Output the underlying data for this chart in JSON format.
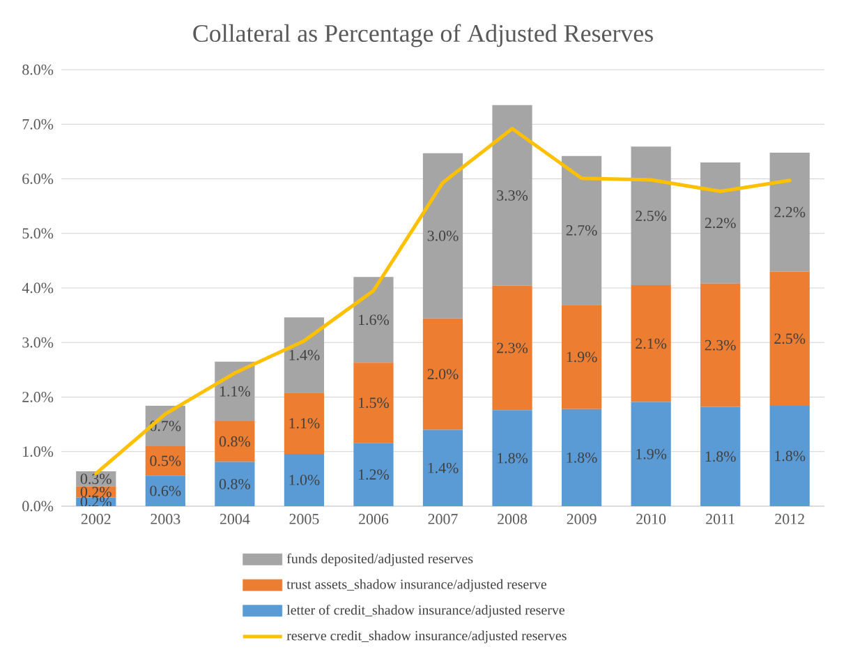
{
  "chart_data": {
    "type": "bar",
    "title": "Collateral as Percentage of Adjusted Reserves",
    "categories": [
      "2002",
      "2003",
      "2004",
      "2005",
      "2006",
      "2007",
      "2008",
      "2009",
      "2010",
      "2011",
      "2012"
    ],
    "series": [
      {
        "name": "letter of credit_shadow insurance/adjusted reserve",
        "color": "#5b9bd5",
        "values": [
          0.16,
          0.56,
          0.81,
          0.96,
          1.16,
          1.4,
          1.76,
          1.78,
          1.91,
          1.82,
          1.84
        ],
        "value_labels": [
          "0.2%",
          "0.6%",
          "0.8%",
          "1.0%",
          "1.2%",
          "1.4%",
          "1.8%",
          "1.8%",
          "1.9%",
          "1.8%",
          "1.8%"
        ]
      },
      {
        "name": "trust assets_shadow insurance/adjusted reserve",
        "color": "#ed7d31",
        "values": [
          0.2,
          0.54,
          0.75,
          1.12,
          1.47,
          2.04,
          2.28,
          1.91,
          2.14,
          2.26,
          2.46
        ],
        "value_labels": [
          "0.2%",
          "0.5%",
          "0.8%",
          "1.1%",
          "1.5%",
          "2.0%",
          "2.3%",
          "1.9%",
          "2.1%",
          "2.3%",
          "2.5%"
        ]
      },
      {
        "name": "funds deposited/adjusted reserves",
        "color": "#a5a5a5",
        "values": [
          0.28,
          0.74,
          1.09,
          1.38,
          1.57,
          3.03,
          3.31,
          2.73,
          2.54,
          2.22,
          2.18
        ],
        "value_labels": [
          "0.3%",
          "0.7%",
          "1.1%",
          "1.4%",
          "1.6%",
          "3.0%",
          "3.3%",
          "2.7%",
          "2.5%",
          "2.2%",
          "2.2%"
        ]
      },
      {
        "name": "reserve credit_shadow insurance/adjusted reserves",
        "type": "line",
        "color": "#ffc000",
        "values": [
          0.6,
          1.69,
          2.44,
          3.03,
          3.95,
          5.93,
          6.92,
          6.01,
          5.98,
          5.77,
          5.97
        ]
      }
    ],
    "stacked": true,
    "ylim": [
      0,
      8
    ],
    "yticks": [
      {
        "value": 0,
        "label": "0.0%"
      },
      {
        "value": 1,
        "label": "1.0%"
      },
      {
        "value": 2,
        "label": "2.0%"
      },
      {
        "value": 3,
        "label": "3.0%"
      },
      {
        "value": 4,
        "label": "4.0%"
      },
      {
        "value": 5,
        "label": "5.0%"
      },
      {
        "value": 6,
        "label": "6.0%"
      },
      {
        "value": 7,
        "label": "7.0%"
      },
      {
        "value": 8,
        "label": "8.0%"
      }
    ],
    "grid": "y",
    "legend": "bottom",
    "marker": "none",
    "line_style": "solid"
  }
}
